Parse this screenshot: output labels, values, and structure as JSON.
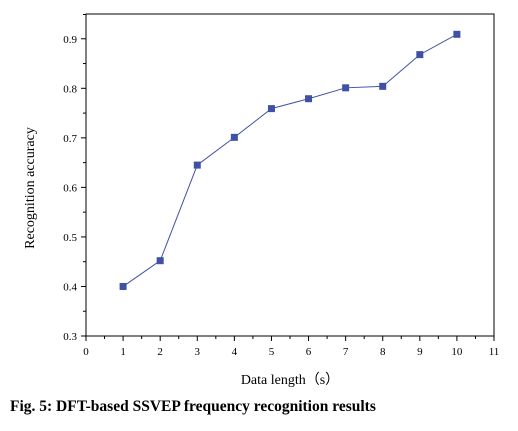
{
  "caption": "Fig. 5: DFT-based SSVEP frequency recognition results",
  "chart_data": {
    "type": "line",
    "title": "",
    "xlabel": "Data length（s）",
    "ylabel": "Recognition accuracy",
    "xlim": [
      0,
      11
    ],
    "ylim": [
      0.3,
      0.95
    ],
    "xticks": [
      0,
      1,
      2,
      3,
      4,
      5,
      6,
      7,
      8,
      9,
      10,
      11
    ],
    "yticks": [
      0.3,
      0.4,
      0.5,
      0.6,
      0.7,
      0.8,
      0.9
    ],
    "grid": false,
    "legend": "none",
    "marker": "square",
    "color": "#3f51a5",
    "series": [
      {
        "x": [
          1,
          2,
          3,
          4,
          5,
          6,
          7,
          8,
          9,
          10
        ],
        "values": [
          0.4,
          0.452,
          0.645,
          0.701,
          0.759,
          0.779,
          0.801,
          0.804,
          0.868,
          0.909
        ]
      }
    ]
  }
}
